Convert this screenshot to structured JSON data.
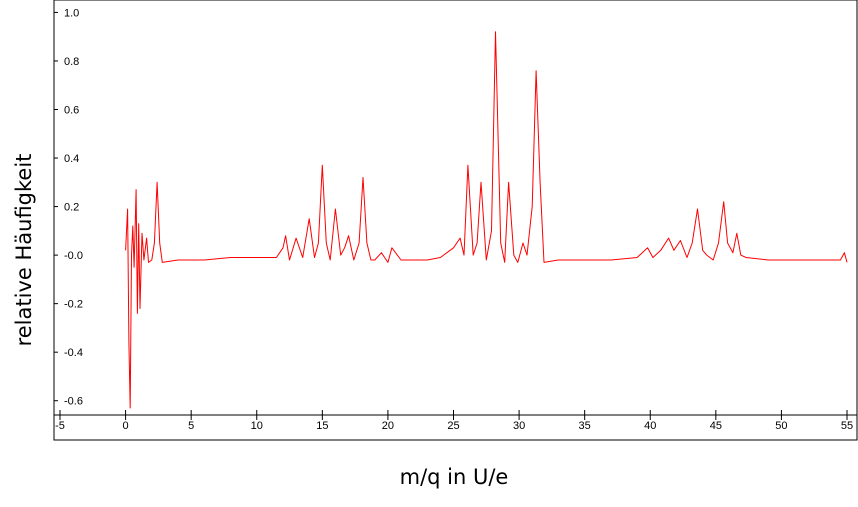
{
  "chart_data": {
    "type": "line",
    "title": "",
    "xlabel": "m/q in U/e",
    "ylabel": "relative Häufigkeit",
    "xlim": [
      -5,
      55
    ],
    "ylim": [
      -0.63,
      1.01
    ],
    "x_ticks": [
      -5,
      0,
      5,
      10,
      15,
      20,
      25,
      30,
      35,
      40,
      45,
      50,
      55
    ],
    "y_ticks": [
      -0.6,
      -0.4,
      -0.2,
      0.0,
      0.2,
      0.4,
      0.6,
      0.8,
      1.0
    ],
    "x_tick_labels": [
      "-5",
      "0",
      "5",
      "10",
      "15",
      "20",
      "25",
      "30",
      "35",
      "40",
      "45",
      "50",
      "55"
    ],
    "y_tick_labels": [
      "-0.6",
      "-0.4",
      "-0.2",
      "-0.0",
      "0.2",
      "0.4",
      "0.6",
      "0.8",
      "1.0"
    ],
    "grid": false,
    "legend": "none",
    "line_color": "#ff0000",
    "series": [
      {
        "values": [
          [
            0.0,
            0.02
          ],
          [
            0.15,
            0.19
          ],
          [
            0.25,
            -0.36
          ],
          [
            0.35,
            -0.63
          ],
          [
            0.45,
            0.0
          ],
          [
            0.55,
            0.12
          ],
          [
            0.65,
            -0.05
          ],
          [
            0.8,
            0.27
          ],
          [
            0.9,
            -0.24
          ],
          [
            1.0,
            0.13
          ],
          [
            1.1,
            -0.22
          ],
          [
            1.25,
            0.09
          ],
          [
            1.4,
            -0.02
          ],
          [
            1.6,
            0.07
          ],
          [
            1.75,
            -0.03
          ],
          [
            2.0,
            -0.02
          ],
          [
            2.2,
            0.05
          ],
          [
            2.4,
            0.3
          ],
          [
            2.6,
            0.05
          ],
          [
            2.8,
            -0.03
          ],
          [
            4.0,
            -0.02
          ],
          [
            6.0,
            -0.02
          ],
          [
            8.0,
            -0.01
          ],
          [
            10.0,
            -0.01
          ],
          [
            11.5,
            -0.01
          ],
          [
            12.0,
            0.03
          ],
          [
            12.2,
            0.08
          ],
          [
            12.5,
            -0.02
          ],
          [
            13.0,
            0.07
          ],
          [
            13.5,
            -0.01
          ],
          [
            14.0,
            0.15
          ],
          [
            14.4,
            -0.01
          ],
          [
            14.7,
            0.05
          ],
          [
            15.0,
            0.37
          ],
          [
            15.3,
            0.05
          ],
          [
            15.6,
            -0.02
          ],
          [
            16.0,
            0.19
          ],
          [
            16.4,
            0.0
          ],
          [
            16.7,
            0.03
          ],
          [
            17.0,
            0.08
          ],
          [
            17.4,
            -0.02
          ],
          [
            17.8,
            0.05
          ],
          [
            18.1,
            0.32
          ],
          [
            18.4,
            0.05
          ],
          [
            18.7,
            -0.02
          ],
          [
            19.0,
            -0.02
          ],
          [
            19.5,
            0.01
          ],
          [
            20.0,
            -0.03
          ],
          [
            20.3,
            0.03
          ],
          [
            21.0,
            -0.02
          ],
          [
            23.0,
            -0.02
          ],
          [
            24.0,
            -0.01
          ],
          [
            25.0,
            0.03
          ],
          [
            25.5,
            0.07
          ],
          [
            25.8,
            0.0
          ],
          [
            26.1,
            0.37
          ],
          [
            26.5,
            0.0
          ],
          [
            26.8,
            0.05
          ],
          [
            27.1,
            0.3
          ],
          [
            27.5,
            -0.02
          ],
          [
            27.9,
            0.1
          ],
          [
            28.2,
            0.92
          ],
          [
            28.6,
            0.05
          ],
          [
            28.9,
            -0.03
          ],
          [
            29.2,
            0.3
          ],
          [
            29.6,
            0.0
          ],
          [
            29.9,
            -0.03
          ],
          [
            30.3,
            0.05
          ],
          [
            30.6,
            0.0
          ],
          [
            31.0,
            0.2
          ],
          [
            31.3,
            0.76
          ],
          [
            31.6,
            0.3
          ],
          [
            31.9,
            -0.03
          ],
          [
            33.0,
            -0.02
          ],
          [
            35.0,
            -0.02
          ],
          [
            37.0,
            -0.02
          ],
          [
            39.0,
            -0.01
          ],
          [
            39.8,
            0.03
          ],
          [
            40.2,
            -0.01
          ],
          [
            40.8,
            0.02
          ],
          [
            41.4,
            0.07
          ],
          [
            41.8,
            0.02
          ],
          [
            42.3,
            0.06
          ],
          [
            42.8,
            -0.01
          ],
          [
            43.2,
            0.05
          ],
          [
            43.6,
            0.19
          ],
          [
            44.0,
            0.02
          ],
          [
            44.3,
            0.0
          ],
          [
            44.8,
            -0.02
          ],
          [
            45.2,
            0.05
          ],
          [
            45.6,
            0.22
          ],
          [
            45.9,
            0.05
          ],
          [
            46.3,
            0.01
          ],
          [
            46.6,
            0.09
          ],
          [
            46.9,
            0.0
          ],
          [
            47.3,
            -0.01
          ],
          [
            49.0,
            -0.02
          ],
          [
            51.0,
            -0.02
          ],
          [
            53.0,
            -0.02
          ],
          [
            54.5,
            -0.02
          ],
          [
            54.8,
            0.01
          ],
          [
            55.0,
            -0.03
          ]
        ]
      }
    ]
  }
}
